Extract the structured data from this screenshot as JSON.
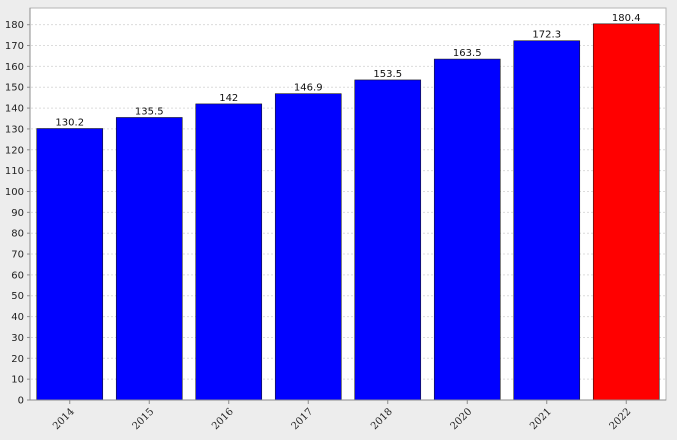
{
  "chart_data": {
    "type": "bar",
    "categories": [
      "2014",
      "2015",
      "2016",
      "2017",
      "2018",
      "2020",
      "2021",
      "2022"
    ],
    "values": [
      130.2,
      135.5,
      142,
      146.9,
      153.5,
      163.5,
      172.3,
      180.4
    ],
    "data_labels": [
      "130.2",
      "135.5",
      "142",
      "146.9",
      "153.5",
      "163.5",
      "172.3",
      "180.4"
    ],
    "bar_colors": [
      "#0000ff",
      "#0000ff",
      "#0000ff",
      "#0000ff",
      "#0000ff",
      "#0000ff",
      "#0000ff",
      "#ff0000"
    ],
    "title": "",
    "xlabel": "",
    "ylabel": "",
    "ylim": [
      0,
      188
    ],
    "yticks": [
      0,
      10,
      20,
      30,
      40,
      50,
      60,
      70,
      80,
      90,
      100,
      110,
      120,
      130,
      140,
      150,
      160,
      170,
      180
    ],
    "grid": true,
    "legend": "none"
  }
}
